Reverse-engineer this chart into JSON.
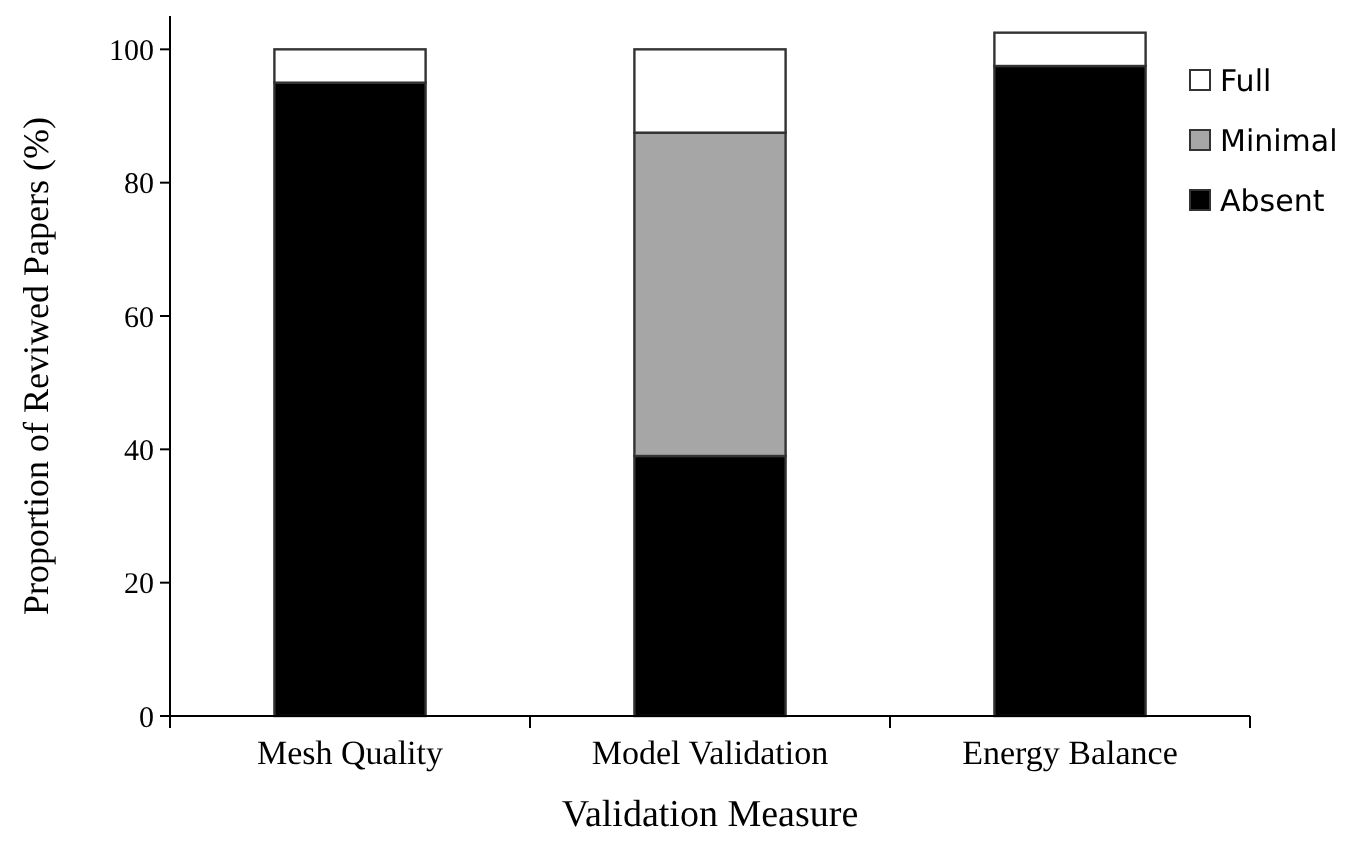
{
  "chart_data": {
    "type": "bar",
    "stacked": true,
    "xlabel": "Validation Measure",
    "ylabel": "Proportion of Reviwed Papers (%)",
    "categories": [
      "Mesh Quality",
      "Model Validation",
      "Energy Balance"
    ],
    "series": [
      {
        "name": "Absent",
        "color": "#000000",
        "values": [
          95,
          39,
          97.5
        ]
      },
      {
        "name": "Minimal",
        "color": "#a6a6a6",
        "values": [
          0,
          48.5,
          0
        ]
      },
      {
        "name": "Full",
        "color": "#ffffff",
        "values": [
          5,
          12.5,
          5
        ]
      }
    ],
    "ylim": [
      0,
      105
    ],
    "yticks": [
      0,
      20,
      40,
      60,
      80,
      100
    ],
    "grid": false,
    "legend": "top right"
  }
}
